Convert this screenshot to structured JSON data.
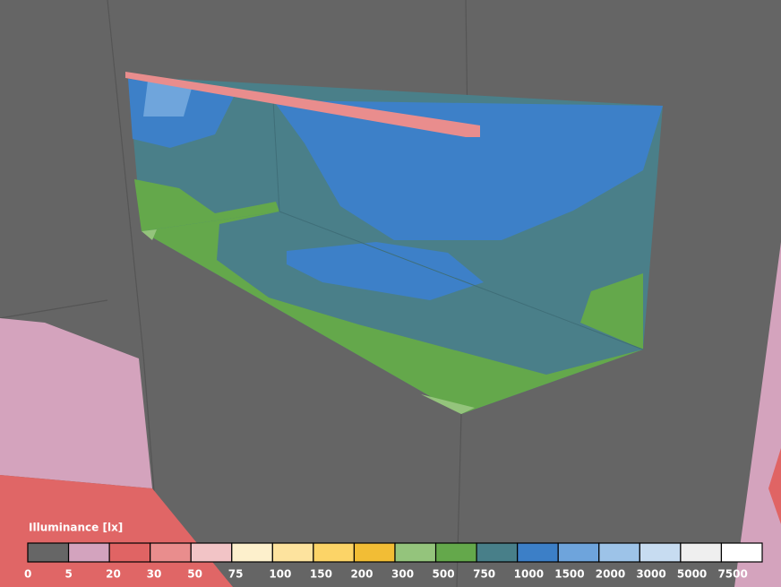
{
  "legend": {
    "title": "Illuminance [lx]",
    "levels": [
      {
        "label": "0",
        "color": "#666666"
      },
      {
        "label": "5",
        "color": "#d3a3be"
      },
      {
        "label": "20",
        "color": "#e06464"
      },
      {
        "label": "30",
        "color": "#e98d8d"
      },
      {
        "label": "50",
        "color": "#f2c4c6"
      },
      {
        "label": "75",
        "color": "#fdf0cc"
      },
      {
        "label": "100",
        "color": "#fde39e"
      },
      {
        "label": "150",
        "color": "#fcd467"
      },
      {
        "label": "200",
        "color": "#f2bd35"
      },
      {
        "label": "300",
        "color": "#94c47c"
      },
      {
        "label": "500",
        "color": "#64a84b"
      },
      {
        "label": "750",
        "color": "#487f89"
      },
      {
        "label": "1000",
        "color": "#3c7fc7"
      },
      {
        "label": "1500",
        "color": "#6ea4dc"
      },
      {
        "label": "2000",
        "color": "#9dc3e8"
      },
      {
        "label": "3000",
        "color": "#c7dcf1"
      },
      {
        "label": "5000",
        "color": "#efefef"
      },
      {
        "label": "7500",
        "color": "#ffffff"
      }
    ]
  }
}
